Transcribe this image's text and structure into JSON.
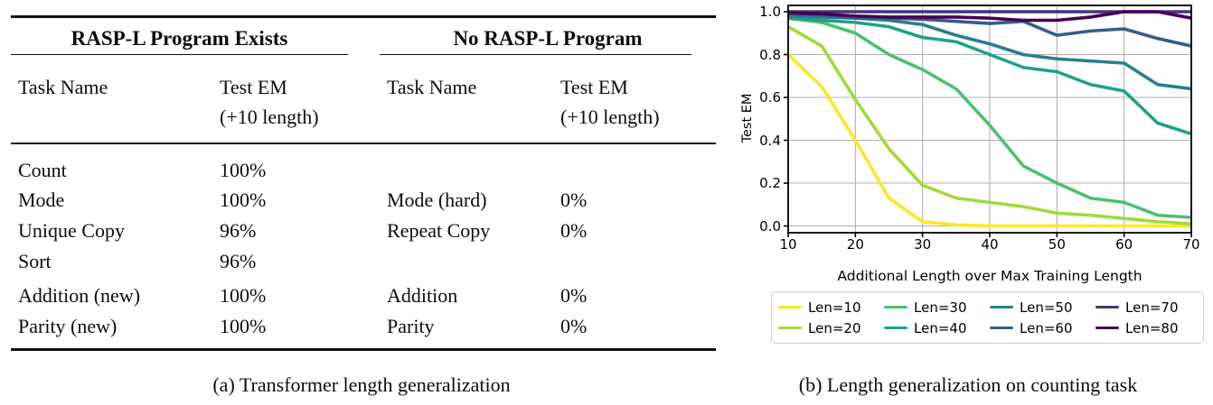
{
  "table": {
    "group_headers": [
      "RASP-L Program Exists",
      "No RASP-L Program"
    ],
    "columns": {
      "task_label": "Task Name",
      "metric_label": "Test EM",
      "metric_sublabel": "(+10 length)"
    },
    "rows": [
      {
        "left_task": "Count",
        "left_val": "100%",
        "right_task": "",
        "right_val": ""
      },
      {
        "left_task": "Mode",
        "left_val": "100%",
        "right_task": "Mode (hard)",
        "right_val": "0%"
      },
      {
        "left_task": "Unique Copy",
        "left_val": "96%",
        "right_task": "Repeat Copy",
        "right_val": "0%"
      },
      {
        "left_task": "Sort",
        "left_val": "96%",
        "right_task": "",
        "right_val": ""
      },
      {
        "left_task": "Addition (new)",
        "left_val": "100%",
        "right_task": "Addition",
        "right_val": "0%"
      },
      {
        "left_task": "Parity (new)",
        "left_val": "100%",
        "right_task": "Parity",
        "right_val": "0%"
      }
    ]
  },
  "captions": {
    "a": "(a) Transformer length generalization",
    "b": "(b) Length generalization on counting task"
  },
  "chart_data": {
    "type": "line",
    "title": "",
    "xlabel": "Additional Length over Max Training Length",
    "ylabel": "Test EM",
    "x": [
      10,
      15,
      20,
      25,
      30,
      35,
      40,
      45,
      50,
      55,
      60,
      65,
      70
    ],
    "xlim": [
      10,
      70
    ],
    "ylim": [
      0.0,
      1.0
    ],
    "xticks": [
      10,
      20,
      30,
      40,
      50,
      60,
      70
    ],
    "yticks": [
      "0.0",
      "0.2",
      "0.4",
      "0.6",
      "0.8",
      "1.0"
    ],
    "grid": true,
    "grid_color": "#b0b0b0",
    "legend_position": "below",
    "legend_columns": 4,
    "series": [
      {
        "name": "Len=10",
        "color": "#fde725",
        "values": [
          0.8,
          0.65,
          0.4,
          0.13,
          0.02,
          0.005,
          0.0,
          0.0,
          0.0,
          0.0,
          0.0,
          0.0,
          0.0
        ]
      },
      {
        "name": "Len=20",
        "color": "#a0da39",
        "values": [
          0.93,
          0.84,
          0.59,
          0.36,
          0.19,
          0.13,
          0.11,
          0.09,
          0.06,
          0.05,
          0.035,
          0.02,
          0.01
        ]
      },
      {
        "name": "Len=30",
        "color": "#4ac16d",
        "values": [
          0.97,
          0.95,
          0.9,
          0.8,
          0.73,
          0.64,
          0.47,
          0.28,
          0.2,
          0.13,
          0.11,
          0.05,
          0.04
        ]
      },
      {
        "name": "Len=40",
        "color": "#1fa187",
        "values": [
          0.97,
          0.96,
          0.95,
          0.93,
          0.88,
          0.86,
          0.8,
          0.74,
          0.72,
          0.66,
          0.63,
          0.48,
          0.43
        ]
      },
      {
        "name": "Len=50",
        "color": "#277f8e",
        "values": [
          0.98,
          0.975,
          0.97,
          0.96,
          0.94,
          0.89,
          0.85,
          0.8,
          0.78,
          0.77,
          0.76,
          0.66,
          0.64
        ]
      },
      {
        "name": "Len=60",
        "color": "#365c8d",
        "values": [
          0.99,
          0.985,
          0.97,
          0.97,
          0.965,
          0.955,
          0.945,
          0.955,
          0.89,
          0.91,
          0.92,
          0.875,
          0.84
        ]
      },
      {
        "name": "Len=70",
        "color": "#46327e",
        "values": [
          1.0,
          1.0,
          1.0,
          1.0,
          1.0,
          1.0,
          1.0,
          1.0,
          1.0,
          1.0,
          1.0,
          1.0,
          1.0
        ]
      },
      {
        "name": "Len=80",
        "color": "#440154",
        "values": [
          0.995,
          0.99,
          0.98,
          0.975,
          0.975,
          0.975,
          0.97,
          0.96,
          0.96,
          0.975,
          1.0,
          1.0,
          0.97
        ]
      }
    ]
  }
}
